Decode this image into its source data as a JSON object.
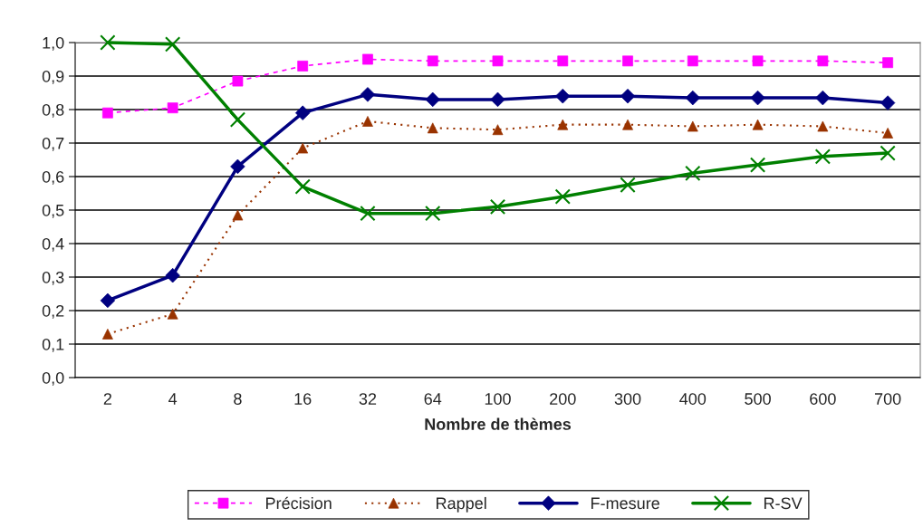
{
  "chart_data": {
    "type": "line",
    "xlabel": "Nombre de thèmes",
    "categories": [
      "2",
      "4",
      "8",
      "16",
      "32",
      "64",
      "100",
      "200",
      "300",
      "400",
      "500",
      "600",
      "700"
    ],
    "series": [
      {
        "name": "Précision",
        "color": "#ff00ff",
        "marker": "square",
        "line_style": "dashed",
        "values": [
          0.79,
          0.805,
          0.885,
          0.93,
          0.95,
          0.945,
          0.945,
          0.945,
          0.945,
          0.945,
          0.945,
          0.945,
          0.94
        ]
      },
      {
        "name": "Rappel",
        "color": "#993300",
        "marker": "triangle",
        "line_style": "dotted",
        "values": [
          0.13,
          0.19,
          0.485,
          0.685,
          0.765,
          0.745,
          0.74,
          0.755,
          0.755,
          0.75,
          0.755,
          0.75,
          0.73
        ]
      },
      {
        "name": "F-mesure",
        "color": "#000080",
        "marker": "diamond",
        "line_style": "solid",
        "values": [
          0.23,
          0.305,
          0.63,
          0.79,
          0.845,
          0.83,
          0.83,
          0.84,
          0.84,
          0.835,
          0.835,
          0.835,
          0.82
        ]
      },
      {
        "name": "R-SV",
        "color": "#008000",
        "marker": "cross",
        "line_style": "solid",
        "values": [
          1.0,
          0.995,
          0.77,
          0.57,
          0.49,
          0.49,
          0.51,
          0.54,
          0.575,
          0.61,
          0.635,
          0.66,
          0.67
        ]
      }
    ],
    "ylim": [
      0,
      1
    ],
    "yticks": [
      {
        "value": 0,
        "label": "0,0"
      },
      {
        "value": 0.1,
        "label": "0,1"
      },
      {
        "value": 0.2,
        "label": "0,2"
      },
      {
        "value": 0.3,
        "label": "0,3"
      },
      {
        "value": 0.4,
        "label": "0,4"
      },
      {
        "value": 0.5,
        "label": "0,5"
      },
      {
        "value": 0.6,
        "label": "0,6"
      },
      {
        "value": 0.7,
        "label": "0,7"
      },
      {
        "value": 0.8,
        "label": "0,8"
      },
      {
        "value": 0.9,
        "label": "0,9"
      },
      {
        "value": 1.0,
        "label": "1,0"
      }
    ],
    "grid": "y",
    "legend": "bottom"
  }
}
